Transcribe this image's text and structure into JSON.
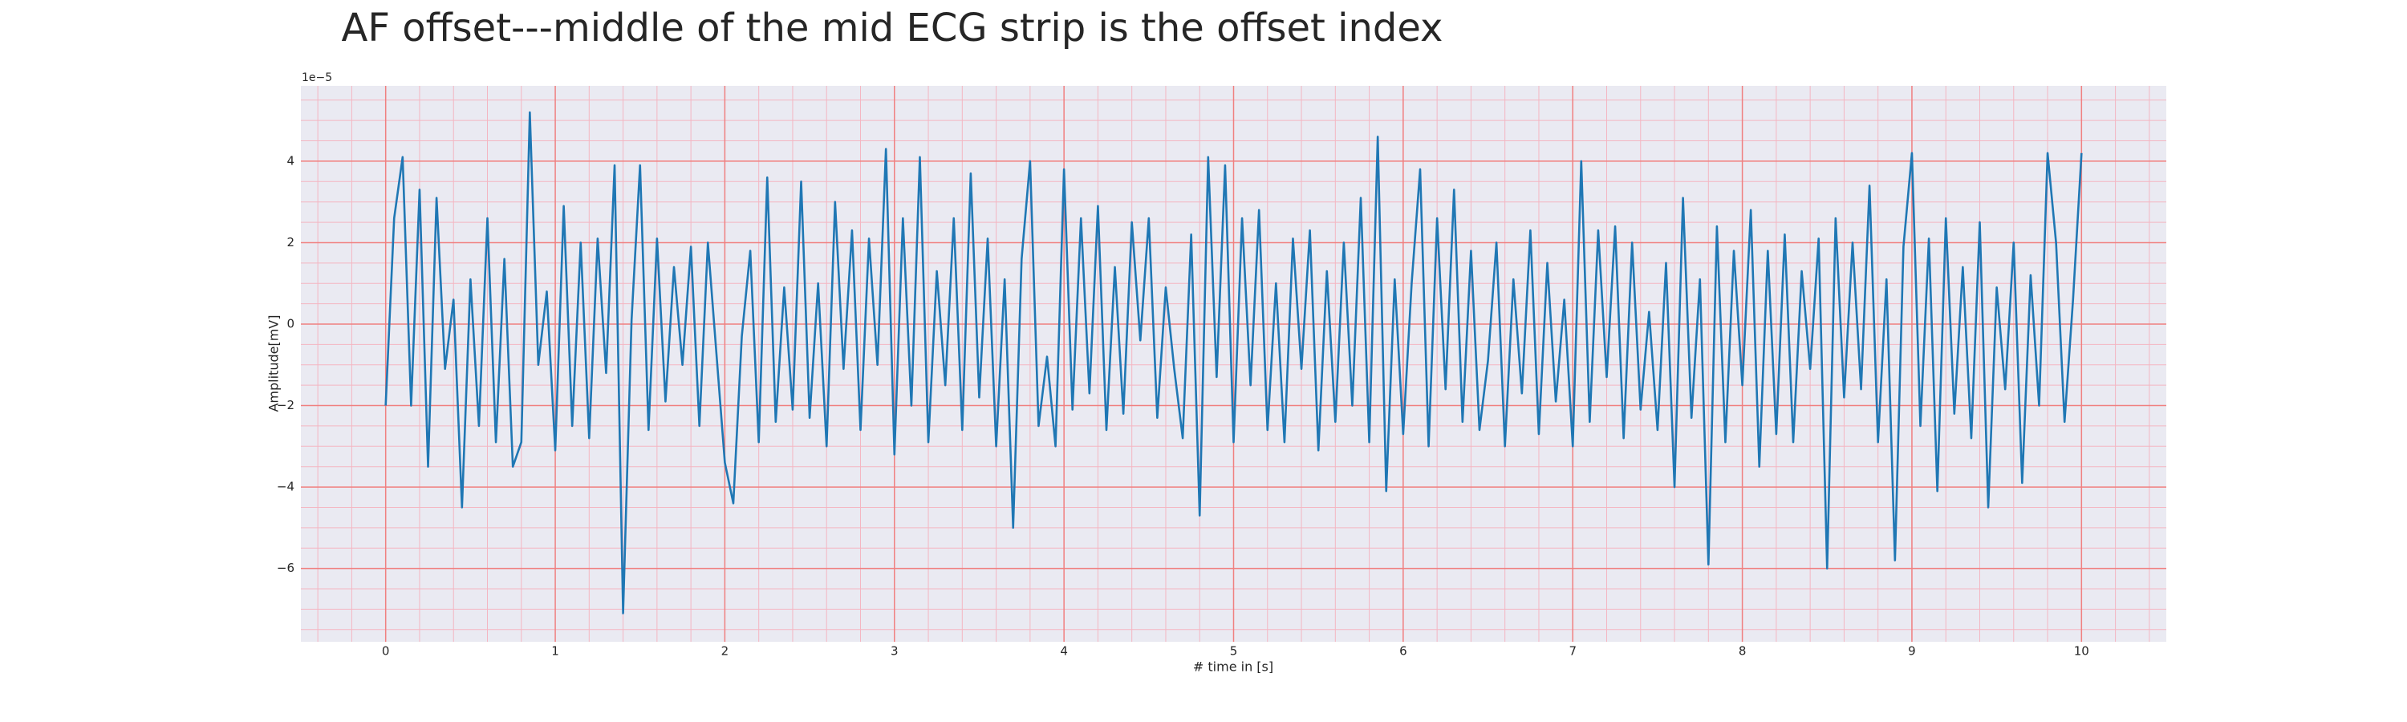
{
  "chart_data": {
    "type": "line",
    "title": "AF offset---middle of the mid ECG strip is the offset index",
    "xlabel": "# time in [s]",
    "ylabel": "Amplitude[mV]",
    "y_offset_text": "1e−5",
    "color": "#1f77b4",
    "grid": true,
    "minor_grid": {
      "x": 0.2,
      "y": 0.5
    },
    "xlim": [
      -0.5,
      10.5
    ],
    "ylim": [
      -7.8,
      5.85
    ],
    "xticks": [
      0,
      1,
      2,
      3,
      4,
      5,
      6,
      7,
      8,
      9,
      10
    ],
    "yticks": [
      {
        "value": -6,
        "label": "−6"
      },
      {
        "value": -4,
        "label": "−4"
      },
      {
        "value": -2,
        "label": "−2"
      },
      0,
      2,
      4
    ],
    "x": [
      0,
      0.05,
      0.1,
      0.15,
      0.2,
      0.25,
      0.3,
      0.35,
      0.4,
      0.45,
      0.5,
      0.55,
      0.6,
      0.65,
      0.7,
      0.75,
      0.8,
      0.85,
      0.9,
      0.95,
      1,
      1.05,
      1.1,
      1.15,
      1.2,
      1.25,
      1.3,
      1.35,
      1.4,
      1.45,
      1.5,
      1.55,
      1.6,
      1.65,
      1.7,
      1.75,
      1.8,
      1.85,
      1.9,
      1.95,
      2,
      2.05,
      2.1,
      2.15,
      2.2,
      2.25,
      2.3,
      2.35,
      2.4,
      2.45,
      2.5,
      2.55,
      2.6,
      2.65,
      2.7,
      2.75,
      2.8,
      2.85,
      2.9,
      2.95,
      3,
      3.05,
      3.1,
      3.15,
      3.2,
      3.25,
      3.3,
      3.35,
      3.4,
      3.45,
      3.5,
      3.55,
      3.6,
      3.65,
      3.7,
      3.75,
      3.8,
      3.85,
      3.9,
      3.95,
      4,
      4.05,
      4.1,
      4.15,
      4.2,
      4.25,
      4.3,
      4.35,
      4.4,
      4.45,
      4.5,
      4.55,
      4.6,
      4.65,
      4.7,
      4.75,
      4.8,
      4.85,
      4.9,
      4.95,
      5,
      5.05,
      5.1,
      5.15,
      5.2,
      5.25,
      5.3,
      5.35,
      5.4,
      5.45,
      5.5,
      5.55,
      5.6,
      5.65,
      5.7,
      5.75,
      5.8,
      5.85,
      5.9,
      5.95,
      6,
      6.05,
      6.1,
      6.15,
      6.2,
      6.25,
      6.3,
      6.35,
      6.4,
      6.45,
      6.5,
      6.55,
      6.6,
      6.65,
      6.7,
      6.75,
      6.8,
      6.85,
      6.9,
      6.95,
      7,
      7.05,
      7.1,
      7.15,
      7.2,
      7.25,
      7.3,
      7.35,
      7.4,
      7.45,
      7.5,
      7.55,
      7.6,
      7.65,
      7.7,
      7.75,
      7.8,
      7.85,
      7.9,
      7.95,
      8,
      8.05,
      8.1,
      8.15,
      8.2,
      8.25,
      8.3,
      8.35,
      8.4,
      8.45,
      8.5,
      8.55,
      8.6,
      8.65,
      8.7,
      8.75,
      8.8,
      8.85,
      8.9,
      8.95,
      9,
      9.05,
      9.1,
      9.15,
      9.2,
      9.25,
      9.3,
      9.35,
      9.4,
      9.45,
      9.5,
      9.55,
      9.6,
      9.65,
      9.7,
      9.75,
      9.8,
      9.85,
      9.9,
      9.95,
      10
    ],
    "values": [
      -2.0,
      2.6,
      4.1,
      -2.0,
      3.3,
      -3.5,
      3.1,
      -1.1,
      0.6,
      -4.5,
      1.1,
      -2.5,
      2.6,
      -2.9,
      1.6,
      -3.5,
      -2.9,
      5.2,
      -1.0,
      0.8,
      -3.1,
      2.9,
      -2.5,
      2.0,
      -2.8,
      2.1,
      -1.2,
      3.9,
      -7.1,
      0.1,
      3.9,
      -2.6,
      2.1,
      -1.9,
      1.4,
      -1.0,
      1.9,
      -2.5,
      2.0,
      -0.7,
      -3.4,
      -4.4,
      -0.3,
      1.8,
      -2.9,
      3.6,
      -2.4,
      0.9,
      -2.1,
      3.5,
      -2.3,
      1.0,
      -3.0,
      3.0,
      -1.1,
      2.3,
      -2.6,
      2.1,
      -1.0,
      4.3,
      -3.2,
      2.6,
      -2.0,
      4.1,
      -2.9,
      1.3,
      -1.5,
      2.6,
      -2.6,
      3.7,
      -1.8,
      2.1,
      -3.0,
      1.1,
      -5.0,
      1.6,
      4.0,
      -2.5,
      -0.8,
      -3.0,
      3.8,
      -2.1,
      2.6,
      -1.7,
      2.9,
      -2.6,
      1.4,
      -2.2,
      2.5,
      -0.4,
      2.6,
      -2.3,
      0.9,
      -1.1,
      -2.8,
      2.2,
      -4.7,
      4.1,
      -1.3,
      3.9,
      -2.9,
      2.6,
      -1.5,
      2.8,
      -2.6,
      1.0,
      -2.9,
      2.1,
      -1.1,
      2.3,
      -3.1,
      1.3,
      -2.4,
      2.0,
      -2.0,
      3.1,
      -2.9,
      4.6,
      -4.1,
      1.1,
      -2.7,
      1.0,
      3.8,
      -3.0,
      2.6,
      -1.6,
      3.3,
      -2.4,
      1.8,
      -2.6,
      -0.9,
      2.0,
      -3.0,
      1.1,
      -1.7,
      2.3,
      -2.7,
      1.5,
      -1.9,
      0.6,
      -3.0,
      4.0,
      -2.4,
      2.3,
      -1.3,
      2.4,
      -2.8,
      2.0,
      -2.1,
      0.3,
      -2.6,
      1.5,
      -4.0,
      3.1,
      -2.3,
      1.1,
      -5.9,
      2.4,
      -2.9,
      1.8,
      -1.5,
      2.8,
      -3.5,
      1.8,
      -2.7,
      2.2,
      -2.9,
      1.3,
      -1.1,
      2.1,
      -6.0,
      2.6,
      -1.8,
      2.0,
      -1.6,
      3.4,
      -2.9,
      1.1,
      -5.8,
      1.9,
      4.2,
      -2.5,
      2.1,
      -4.1,
      2.6,
      -2.2,
      1.4,
      -2.8,
      2.5,
      -4.5,
      0.9,
      -1.6,
      2.0,
      -3.9,
      1.2,
      -2.0,
      4.2,
      2.0,
      -2.4,
      0.6,
      4.2
    ]
  }
}
